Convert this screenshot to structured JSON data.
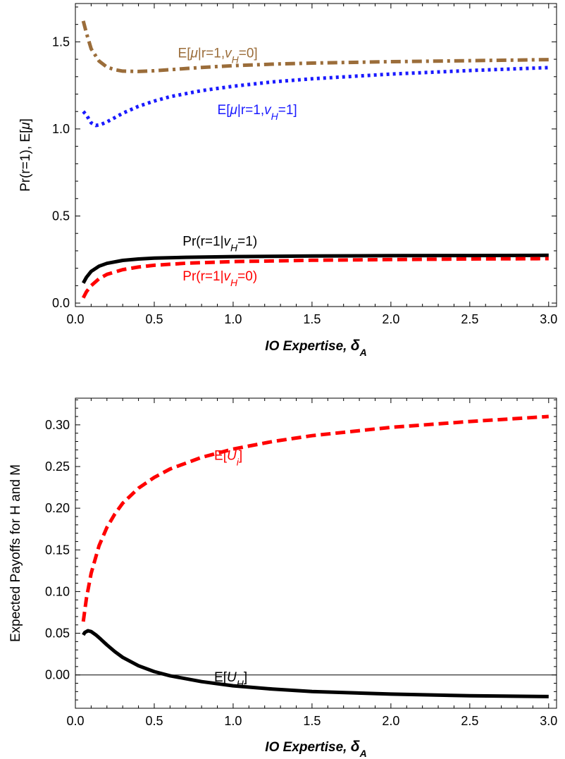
{
  "chart_data": [
    {
      "type": "line",
      "xlabel": "IO Expertise,",
      "xlabel_symbol": "δ",
      "xlabel_sub": "A",
      "ylabel": "Pr(r=1), E[μ]",
      "xlim": [
        0,
        3.05
      ],
      "ylim": [
        -0.02,
        1.72
      ],
      "x_ticks": [
        0.0,
        0.5,
        1.0,
        1.5,
        2.0,
        2.5,
        3.0
      ],
      "x_tick_labels": [
        "0.0",
        "0.5",
        "1.0",
        "1.5",
        "2.0",
        "2.5",
        "3.0"
      ],
      "y_ticks": [
        0.0,
        0.5,
        1.0,
        1.5
      ],
      "y_tick_labels": [
        "0.0",
        "0.5",
        "1.0",
        "1.5"
      ],
      "series": [
        {
          "name": "E[μ|r=1,vH=0]",
          "label_parts": [
            "E[",
            "μ",
            "|r=1,",
            "v",
            "H",
            "=0]"
          ],
          "color": "#9b6d3a",
          "style": "dashdot",
          "label_pos": [
            0.65,
            1.41
          ],
          "x": [
            0.05,
            0.07,
            0.1,
            0.15,
            0.2,
            0.25,
            0.3,
            0.4,
            0.5,
            0.6,
            0.8,
            1.0,
            1.25,
            1.5,
            2.0,
            2.5,
            3.0
          ],
          "y": [
            1.62,
            1.55,
            1.46,
            1.39,
            1.355,
            1.34,
            1.332,
            1.33,
            1.334,
            1.34,
            1.353,
            1.363,
            1.372,
            1.378,
            1.386,
            1.392,
            1.398
          ]
        },
        {
          "name": "E[μ|r=1,vH=1]",
          "label_parts": [
            "E[",
            "μ",
            "|r=1,",
            "v",
            "H",
            "=1]"
          ],
          "color": "#1a1aff",
          "style": "dotted",
          "label_pos": [
            0.9,
            1.085
          ],
          "x": [
            0.05,
            0.07,
            0.1,
            0.13,
            0.16,
            0.2,
            0.25,
            0.3,
            0.4,
            0.5,
            0.6,
            0.8,
            1.0,
            1.25,
            1.5,
            2.0,
            2.5,
            3.0
          ],
          "y": [
            1.1,
            1.08,
            1.035,
            1.02,
            1.025,
            1.04,
            1.065,
            1.09,
            1.13,
            1.16,
            1.185,
            1.22,
            1.245,
            1.27,
            1.288,
            1.315,
            1.335,
            1.352
          ]
        },
        {
          "name": "Pr(r=1|vH=1)",
          "label_parts": [
            "Pr(r=1|",
            "",
            "",
            "v",
            "H",
            "=1)"
          ],
          "color": "#000000",
          "style": "solid",
          "label_pos": [
            0.68,
            0.33
          ],
          "x": [
            0.05,
            0.07,
            0.1,
            0.15,
            0.2,
            0.3,
            0.4,
            0.5,
            0.7,
            1.0,
            1.5,
            2.0,
            2.5,
            3.0
          ],
          "y": [
            0.115,
            0.148,
            0.182,
            0.212,
            0.228,
            0.245,
            0.253,
            0.258,
            0.263,
            0.267,
            0.27,
            0.272,
            0.273,
            0.274
          ]
        },
        {
          "name": "Pr(r=1|vH=0)",
          "label_parts": [
            "Pr(r=1|",
            "",
            "",
            "v",
            "H",
            "=0)"
          ],
          "color": "#ff0000",
          "style": "dashed",
          "label_pos": [
            0.68,
            0.13
          ],
          "x": [
            0.05,
            0.07,
            0.1,
            0.15,
            0.2,
            0.3,
            0.4,
            0.5,
            0.7,
            1.0,
            1.5,
            2.0,
            2.5,
            3.0
          ],
          "y": [
            0.03,
            0.065,
            0.1,
            0.14,
            0.165,
            0.192,
            0.207,
            0.217,
            0.229,
            0.238,
            0.246,
            0.25,
            0.253,
            0.255
          ]
        }
      ]
    },
    {
      "type": "line",
      "xlabel": "IO Expertise,",
      "xlabel_symbol": "δ",
      "xlabel_sub": "A",
      "ylabel": "Expected Payoffs for H and M",
      "xlim": [
        0,
        3.05
      ],
      "ylim": [
        -0.04,
        0.332
      ],
      "x_ticks": [
        0.0,
        0.5,
        1.0,
        1.5,
        2.0,
        2.5,
        3.0
      ],
      "x_tick_labels": [
        "0.0",
        "0.5",
        "1.0",
        "1.5",
        "2.0",
        "2.5",
        "3.0"
      ],
      "y_ticks": [
        0.0,
        0.05,
        0.1,
        0.15,
        0.2,
        0.25,
        0.3
      ],
      "y_tick_labels": [
        "0.00",
        "0.05",
        "0.10",
        "0.15",
        "0.20",
        "0.25",
        "0.30"
      ],
      "zero_line": true,
      "series": [
        {
          "name": "E[Ui]",
          "label_parts": [
            "E[",
            "U",
            "i",
            "]"
          ],
          "color": "#ff0000",
          "style": "dashed",
          "label_pos": [
            0.88,
            0.258
          ],
          "x": [
            0.05,
            0.07,
            0.1,
            0.15,
            0.2,
            0.25,
            0.3,
            0.4,
            0.5,
            0.6,
            0.8,
            1.0,
            1.25,
            1.5,
            2.0,
            2.5,
            3.0
          ],
          "y": [
            0.064,
            0.092,
            0.122,
            0.155,
            0.177,
            0.193,
            0.206,
            0.224,
            0.237,
            0.247,
            0.261,
            0.271,
            0.28,
            0.287,
            0.297,
            0.304,
            0.31
          ]
        },
        {
          "name": "E[UH]",
          "label_parts": [
            "E[",
            "U",
            "H",
            "]"
          ],
          "color": "#000000",
          "style": "solid",
          "label_pos": [
            0.88,
            -0.008
          ],
          "x": [
            0.05,
            0.06,
            0.08,
            0.1,
            0.13,
            0.16,
            0.2,
            0.25,
            0.3,
            0.4,
            0.5,
            0.6,
            0.8,
            1.0,
            1.25,
            1.5,
            2.0,
            2.5,
            3.0
          ],
          "y": [
            0.048,
            0.051,
            0.053,
            0.052,
            0.048,
            0.043,
            0.036,
            0.028,
            0.021,
            0.011,
            0.004,
            -0.001,
            -0.008,
            -0.013,
            -0.017,
            -0.02,
            -0.023,
            -0.025,
            -0.026
          ]
        }
      ]
    }
  ]
}
